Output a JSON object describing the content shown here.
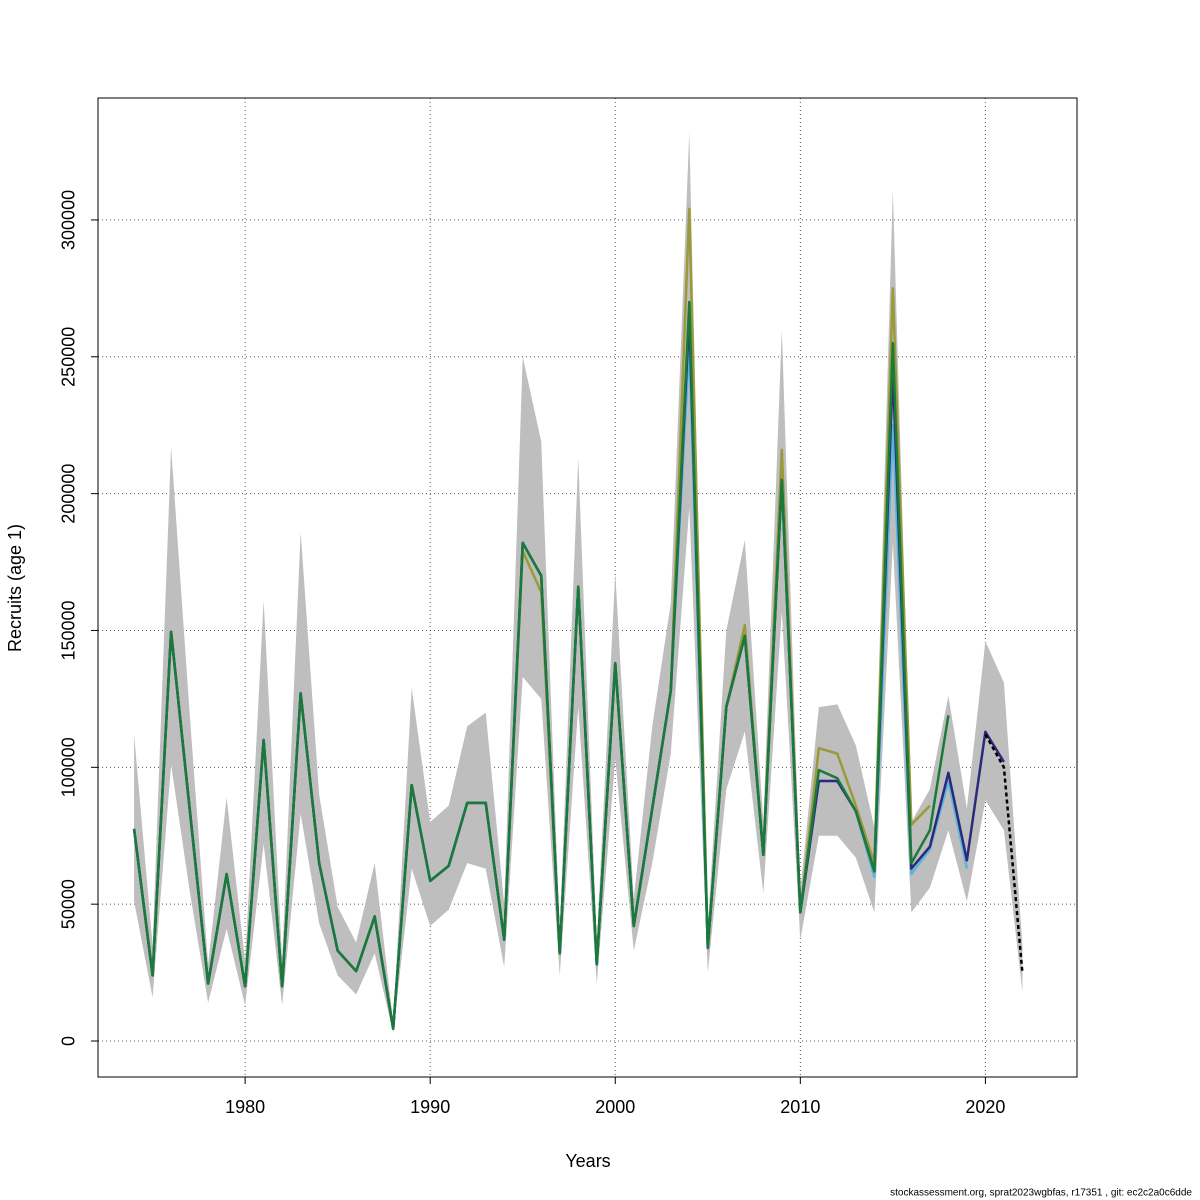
{
  "chart_data": {
    "type": "line",
    "x_label": "Years",
    "y_label": "Recruits (age 1)",
    "footer": "stockassessment.org, sprat2023wgbfas, r17351 , git: ec2c2a0c6dde",
    "x": [
      1974,
      1975,
      1976,
      1977,
      1978,
      1979,
      1980,
      1981,
      1982,
      1983,
      1984,
      1985,
      1986,
      1987,
      1988,
      1989,
      1990,
      1991,
      1992,
      1993,
      1994,
      1995,
      1996,
      1997,
      1998,
      1999,
      2000,
      2001,
      2002,
      2003,
      2004,
      2005,
      2006,
      2007,
      2008,
      2009,
      2010,
      2011,
      2012,
      2013,
      2014,
      2015,
      2016,
      2017,
      2018,
      2019,
      2020,
      2021,
      2022
    ],
    "band": {
      "color": "#bebebe",
      "lower": [
        51000,
        16000,
        101000,
        55000,
        14000,
        41000,
        13000,
        72000,
        13000,
        83000,
        43000,
        24000,
        17000,
        32000,
        3000,
        63000,
        42000,
        48000,
        65000,
        63000,
        27000,
        133000,
        125000,
        24000,
        122000,
        21000,
        103000,
        33000,
        65000,
        105000,
        195000,
        25000,
        92000,
        113000,
        54000,
        157000,
        37000,
        75000,
        75000,
        67000,
        47000,
        182000,
        47000,
        56000,
        77000,
        51000,
        88000,
        77000,
        18000
      ],
      "upper": [
        112000,
        35000,
        217000,
        120000,
        28000,
        89000,
        29000,
        161000,
        30000,
        186000,
        90000,
        49000,
        36000,
        65000,
        7000,
        129000,
        80000,
        86000,
        115000,
        120000,
        50000,
        250000,
        219000,
        40000,
        213000,
        36000,
        171000,
        52000,
        115000,
        160000,
        332000,
        42000,
        150000,
        183000,
        80000,
        260000,
        55000,
        122000,
        123000,
        108000,
        78000,
        311000,
        80000,
        92000,
        126000,
        85000,
        146000,
        131000,
        35000
      ]
    },
    "series": [
      {
        "color": "#9a9a3a",
        "values": [
          77500,
          24000,
          149500,
          85000,
          21000,
          61000,
          20000,
          110000,
          20000,
          127000,
          65000,
          33000,
          25500,
          45500,
          4500,
          93500,
          58500,
          64000,
          87000,
          87000,
          37000,
          179000,
          164000,
          32000,
          166000,
          28000,
          138000,
          42000,
          85000,
          128000,
          304000,
          34000,
          122000,
          152000,
          68000,
          216000,
          47000,
          107000,
          105000,
          86000,
          65000,
          275000,
          79000,
          86000,
          null,
          null,
          null,
          null,
          null
        ]
      },
      {
        "color": "#5ab4e0",
        "values": [
          77500,
          24000,
          149500,
          85000,
          21000,
          61000,
          20000,
          110000,
          20000,
          127000,
          65000,
          33000,
          25500,
          45500,
          4500,
          93500,
          58500,
          64000,
          87000,
          87000,
          37000,
          182000,
          170000,
          32000,
          166000,
          28000,
          138000,
          42000,
          85000,
          128000,
          255000,
          34000,
          122000,
          148000,
          68000,
          205000,
          47000,
          95000,
          95000,
          84000,
          60000,
          225000,
          61000,
          70000,
          95000,
          63000,
          null,
          null,
          null
        ]
      },
      {
        "color": "#2a2a7a",
        "values": [
          77500,
          24000,
          149500,
          85000,
          21000,
          61000,
          20000,
          110000,
          20000,
          127000,
          65000,
          33000,
          25500,
          45500,
          4500,
          93500,
          58500,
          64000,
          87000,
          87000,
          37000,
          182000,
          170000,
          32000,
          166000,
          28000,
          138000,
          42000,
          85000,
          128000,
          265000,
          34000,
          122000,
          148000,
          68000,
          205000,
          47000,
          95000,
          95000,
          84000,
          62000,
          245000,
          63000,
          71000,
          98000,
          66000,
          113000,
          102000,
          null
        ]
      },
      {
        "color": "#1a7a3a",
        "values": [
          77500,
          24000,
          149500,
          85000,
          21000,
          61000,
          20000,
          110000,
          20000,
          127000,
          65000,
          33000,
          25500,
          45500,
          4500,
          93500,
          58500,
          64000,
          87000,
          87000,
          37000,
          182000,
          170000,
          32000,
          166000,
          28000,
          138000,
          42000,
          85000,
          128000,
          270000,
          34000,
          122000,
          148000,
          68000,
          205000,
          47000,
          99000,
          96000,
          84000,
          62000,
          255000,
          65000,
          77000,
          119000,
          null,
          null,
          null,
          null
        ]
      },
      {
        "color": "#000000",
        "dashed": true,
        "values": [
          null,
          null,
          null,
          null,
          null,
          null,
          null,
          null,
          null,
          null,
          null,
          null,
          null,
          null,
          null,
          null,
          null,
          null,
          null,
          null,
          null,
          null,
          null,
          null,
          null,
          null,
          null,
          null,
          null,
          null,
          null,
          null,
          null,
          null,
          null,
          null,
          null,
          null,
          null,
          null,
          null,
          null,
          null,
          null,
          null,
          null,
          112000,
          100000,
          25000
        ]
      }
    ],
    "xlim": [
      1972.05,
      2024.95
    ],
    "ylim": [
      -13150,
      344550
    ],
    "xticks": [
      1980,
      1990,
      2000,
      2010,
      2020
    ],
    "yticks": [
      0,
      50000,
      100000,
      150000,
      200000,
      250000,
      300000
    ],
    "grid": true
  }
}
